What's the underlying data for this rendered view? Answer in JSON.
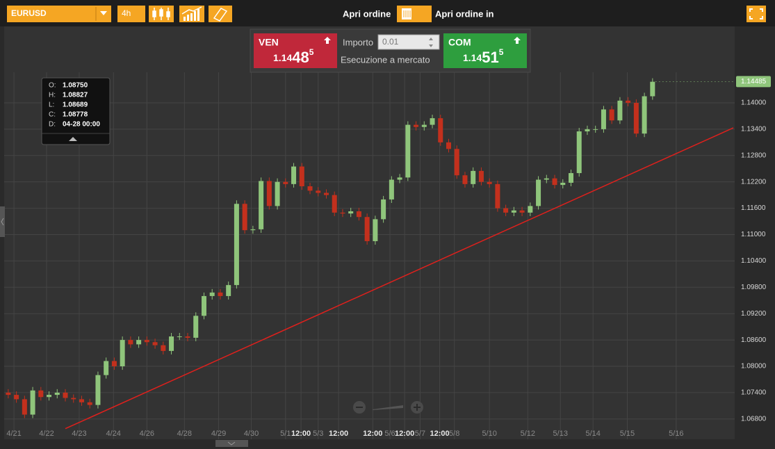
{
  "toolbar": {
    "symbol": "EURUSD",
    "timeframe": "4h",
    "open_order": "Apri ordine",
    "open_order_in": "Apri ordine in"
  },
  "order_panel": {
    "sell": {
      "label": "VEN",
      "price_prefix": "1.14",
      "price_big": "48",
      "price_pip": "5"
    },
    "amount_label": "Importo",
    "amount": "0.01",
    "execution": "Esecuzione a mercato",
    "buy": {
      "label": "COM",
      "price_prefix": "1.14",
      "price_big": "51",
      "price_pip": "5"
    }
  },
  "tooltip": {
    "rows": [
      [
        "O:",
        "1.08750"
      ],
      [
        "H:",
        "1.08827"
      ],
      [
        "L:",
        "1.08689"
      ],
      [
        "C:",
        "1.08778"
      ],
      [
        "D:",
        "04-28 00:00"
      ]
    ]
  },
  "chart_data": {
    "type": "candlestick",
    "open": [
      1.074,
      1.0735,
      1.0725,
      1.069,
      1.0745,
      1.073,
      1.0735,
      1.074,
      1.0728,
      1.0725,
      1.0718,
      1.0712,
      1.078,
      1.0812,
      1.08,
      1.086,
      1.085,
      1.086,
      1.0855,
      1.0848,
      1.0835,
      1.0868,
      1.0868,
      1.0865,
      1.0915,
      1.096,
      1.0968,
      1.096,
      1.0985,
      1.117,
      1.111,
      1.1112,
      1.1222,
      1.1165,
      1.122,
      1.1215,
      1.1255,
      1.121,
      1.12,
      1.1195,
      1.119,
      1.115,
      1.1148,
      1.1153,
      1.114,
      1.1085,
      1.1135,
      1.118,
      1.1225,
      1.123,
      1.135,
      1.1345,
      1.135,
      1.1365,
      1.131,
      1.1295,
      1.1235,
      1.1215,
      1.1245,
      1.122,
      1.1215,
      1.116,
      1.115,
      1.1155,
      1.115,
      1.1165,
      1.1225,
      1.1228,
      1.1213,
      1.1218,
      1.124,
      1.1335,
      1.134,
      1.134,
      1.1385,
      1.136,
      1.1405,
      1.14,
      1.133,
      1.1415
    ],
    "high": [
      1.0748,
      1.0743,
      1.0733,
      1.0753,
      1.0753,
      1.0743,
      1.0748,
      1.0748,
      1.0736,
      1.0733,
      1.0726,
      1.0788,
      1.082,
      1.082,
      1.0868,
      1.0868,
      1.0868,
      1.0868,
      1.0863,
      1.0856,
      1.0876,
      1.0876,
      1.0876,
      1.0923,
      1.0968,
      1.0976,
      1.0976,
      1.0993,
      1.1178,
      1.1178,
      1.112,
      1.123,
      1.123,
      1.1228,
      1.1228,
      1.1263,
      1.1263,
      1.1218,
      1.1208,
      1.1203,
      1.1198,
      1.1158,
      1.1161,
      1.1161,
      1.1148,
      1.1143,
      1.1188,
      1.1233,
      1.1238,
      1.1358,
      1.1358,
      1.1358,
      1.1373,
      1.1373,
      1.1318,
      1.1303,
      1.1243,
      1.1253,
      1.1253,
      1.1228,
      1.1223,
      1.1168,
      1.1163,
      1.1163,
      1.1173,
      1.1233,
      1.1236,
      1.1236,
      1.1226,
      1.1248,
      1.1343,
      1.1348,
      1.1348,
      1.1393,
      1.1393,
      1.1413,
      1.1413,
      1.1408,
      1.1423,
      1.1456
    ],
    "low": [
      1.0727,
      1.0717,
      1.0682,
      1.0682,
      1.0722,
      1.0722,
      1.0727,
      1.072,
      1.0717,
      1.071,
      1.0704,
      1.0704,
      1.0772,
      1.0792,
      1.0792,
      1.0842,
      1.0842,
      1.0847,
      1.084,
      1.0827,
      1.0827,
      1.086,
      1.0857,
      1.0857,
      1.0907,
      1.0952,
      1.0952,
      1.0952,
      1.0977,
      1.1102,
      1.1102,
      1.1104,
      1.1157,
      1.1157,
      1.1207,
      1.1207,
      1.1202,
      1.1192,
      1.1187,
      1.1182,
      1.1142,
      1.114,
      1.114,
      1.1132,
      1.1077,
      1.1077,
      1.1127,
      1.1172,
      1.1217,
      1.1222,
      1.1337,
      1.1337,
      1.1342,
      1.1302,
      1.1287,
      1.1227,
      1.1207,
      1.1207,
      1.1212,
      1.1207,
      1.1152,
      1.1142,
      1.1142,
      1.1142,
      1.1142,
      1.1157,
      1.1217,
      1.1205,
      1.1205,
      1.121,
      1.1232,
      1.1327,
      1.1332,
      1.1332,
      1.1352,
      1.1352,
      1.1392,
      1.1322,
      1.1322,
      1.1407
    ],
    "close": [
      1.0735,
      1.0725,
      1.069,
      1.0745,
      1.073,
      1.0735,
      1.074,
      1.0728,
      1.0725,
      1.0718,
      1.0712,
      1.078,
      1.0812,
      1.08,
      1.086,
      1.085,
      1.086,
      1.0855,
      1.0848,
      1.0835,
      1.0868,
      1.0868,
      1.0865,
      1.0915,
      1.096,
      1.0968,
      1.096,
      1.0985,
      1.117,
      1.111,
      1.1112,
      1.1222,
      1.1165,
      1.122,
      1.1215,
      1.1255,
      1.121,
      1.12,
      1.1195,
      1.119,
      1.115,
      1.1148,
      1.1153,
      1.114,
      1.1085,
      1.1135,
      1.118,
      1.1225,
      1.123,
      1.135,
      1.1345,
      1.135,
      1.1365,
      1.131,
      1.1295,
      1.1235,
      1.1215,
      1.1245,
      1.122,
      1.1215,
      1.116,
      1.115,
      1.1155,
      1.115,
      1.1165,
      1.1225,
      1.1228,
      1.1213,
      1.1218,
      1.124,
      1.1335,
      1.134,
      1.134,
      1.1385,
      1.136,
      1.1405,
      1.14,
      1.133,
      1.1415,
      1.1448
    ],
    "up_color": "#8fc57b",
    "down_color": "#c3301d",
    "xlim": [
      -0.5,
      88.9
    ],
    "xticks": [
      {
        "value": 0.7,
        "label": "4/21"
      },
      {
        "value": 4.7,
        "label": "4/22"
      },
      {
        "value": 8.7,
        "label": "4/23"
      },
      {
        "value": 12.9,
        "label": "4/24"
      },
      {
        "value": 17,
        "label": "4/26"
      },
      {
        "value": 21.6,
        "label": "4/28"
      },
      {
        "value": 25.8,
        "label": "4/29"
      },
      {
        "value": 29.8,
        "label": "4/30"
      },
      {
        "value": 34,
        "label": "5/1"
      },
      {
        "value": 35.9,
        "label": "12:00"
      },
      {
        "value": 38,
        "label": "5/3"
      },
      {
        "value": 40.5,
        "label": "12:00"
      },
      {
        "value": 44.7,
        "label": "12:00"
      },
      {
        "value": 46.8,
        "label": "5/6"
      },
      {
        "value": 48.6,
        "label": "12:00"
      },
      {
        "value": 50.5,
        "label": "5/7"
      },
      {
        "value": 52.9,
        "label": "12:00"
      },
      {
        "value": 54.7,
        "label": "5/8"
      },
      {
        "value": 59,
        "label": "5/10"
      },
      {
        "value": 63.7,
        "label": "5/12"
      },
      {
        "value": 67.7,
        "label": "5/13"
      },
      {
        "value": 71.7,
        "label": "5/14"
      },
      {
        "value": 75.9,
        "label": "5/15"
      },
      {
        "value": 81.9,
        "label": "5/16"
      }
    ],
    "ylim": [
      1.0637,
      1.1468
    ],
    "yticks": [
      {
        "value": 1.068,
        "label": "1.06800"
      },
      {
        "value": 1.074,
        "label": "1.07400"
      },
      {
        "value": 1.08,
        "label": "1.08000"
      },
      {
        "value": 1.086,
        "label": "1.08600"
      },
      {
        "value": 1.092,
        "label": "1.09200"
      },
      {
        "value": 1.098,
        "label": "1.09800"
      },
      {
        "value": 1.104,
        "label": "1.10400"
      },
      {
        "value": 1.11,
        "label": "1.11000"
      },
      {
        "value": 1.116,
        "label": "1.11600"
      },
      {
        "value": 1.122,
        "label": "1.12200"
      },
      {
        "value": 1.128,
        "label": "1.12800"
      },
      {
        "value": 1.134,
        "label": "1.13400"
      },
      {
        "value": 1.14,
        "label": "1.14000"
      }
    ],
    "grid": true,
    "last_price": 1.14485,
    "last_price_color": "#8fc57b",
    "trendline": {
      "x": [
        7,
        88.9
      ],
      "y": [
        1.0658,
        1.1343
      ],
      "color": "#e0201c"
    }
  }
}
